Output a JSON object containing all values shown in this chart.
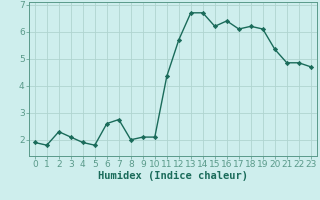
{
  "x": [
    0,
    1,
    2,
    3,
    4,
    5,
    6,
    7,
    8,
    9,
    10,
    11,
    12,
    13,
    14,
    15,
    16,
    17,
    18,
    19,
    20,
    21,
    22,
    23
  ],
  "y": [
    1.9,
    1.8,
    2.3,
    2.1,
    1.9,
    1.8,
    2.6,
    2.75,
    2.0,
    2.1,
    2.1,
    4.35,
    5.7,
    6.7,
    6.7,
    6.2,
    6.4,
    6.1,
    6.2,
    6.1,
    5.35,
    4.85,
    4.85,
    4.7
  ],
  "line_color": "#1a6b5a",
  "marker": "D",
  "marker_size": 2.2,
  "bg_color": "#ceeeed",
  "grid_color": "#b0d4d0",
  "xlabel": "Humidex (Indice chaleur)",
  "ylim": [
    1.4,
    7.1
  ],
  "xlim": [
    -0.5,
    23.5
  ],
  "yticks": [
    2,
    3,
    4,
    5,
    6,
    7
  ],
  "xticks": [
    0,
    1,
    2,
    3,
    4,
    5,
    6,
    7,
    8,
    9,
    10,
    11,
    12,
    13,
    14,
    15,
    16,
    17,
    18,
    19,
    20,
    21,
    22,
    23
  ],
  "xlabel_fontsize": 7.5,
  "tick_fontsize": 6.5,
  "line_width": 1.0,
  "spine_color": "#5a9a8a"
}
